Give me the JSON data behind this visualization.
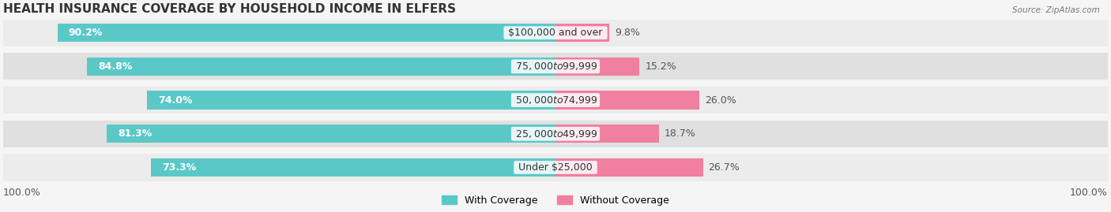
{
  "title": "HEALTH INSURANCE COVERAGE BY HOUSEHOLD INCOME IN ELFERS",
  "source": "Source: ZipAtlas.com",
  "categories": [
    "Under $25,000",
    "$25,000 to $49,999",
    "$50,000 to $74,999",
    "$75,000 to $99,999",
    "$100,000 and over"
  ],
  "with_coverage": [
    73.3,
    81.3,
    74.0,
    84.8,
    90.2
  ],
  "without_coverage": [
    26.7,
    18.7,
    26.0,
    15.2,
    9.8
  ],
  "color_with": "#5BC8C8",
  "color_without": "#F07FA0",
  "bar_height": 0.55,
  "bg_color": "#f0f0f0",
  "bar_bg_color": "#e8e8e8",
  "title_fontsize": 11,
  "label_fontsize": 9,
  "tick_fontsize": 9,
  "legend_fontsize": 9,
  "left_label_100": "100.0%",
  "right_label_100": "100.0%"
}
